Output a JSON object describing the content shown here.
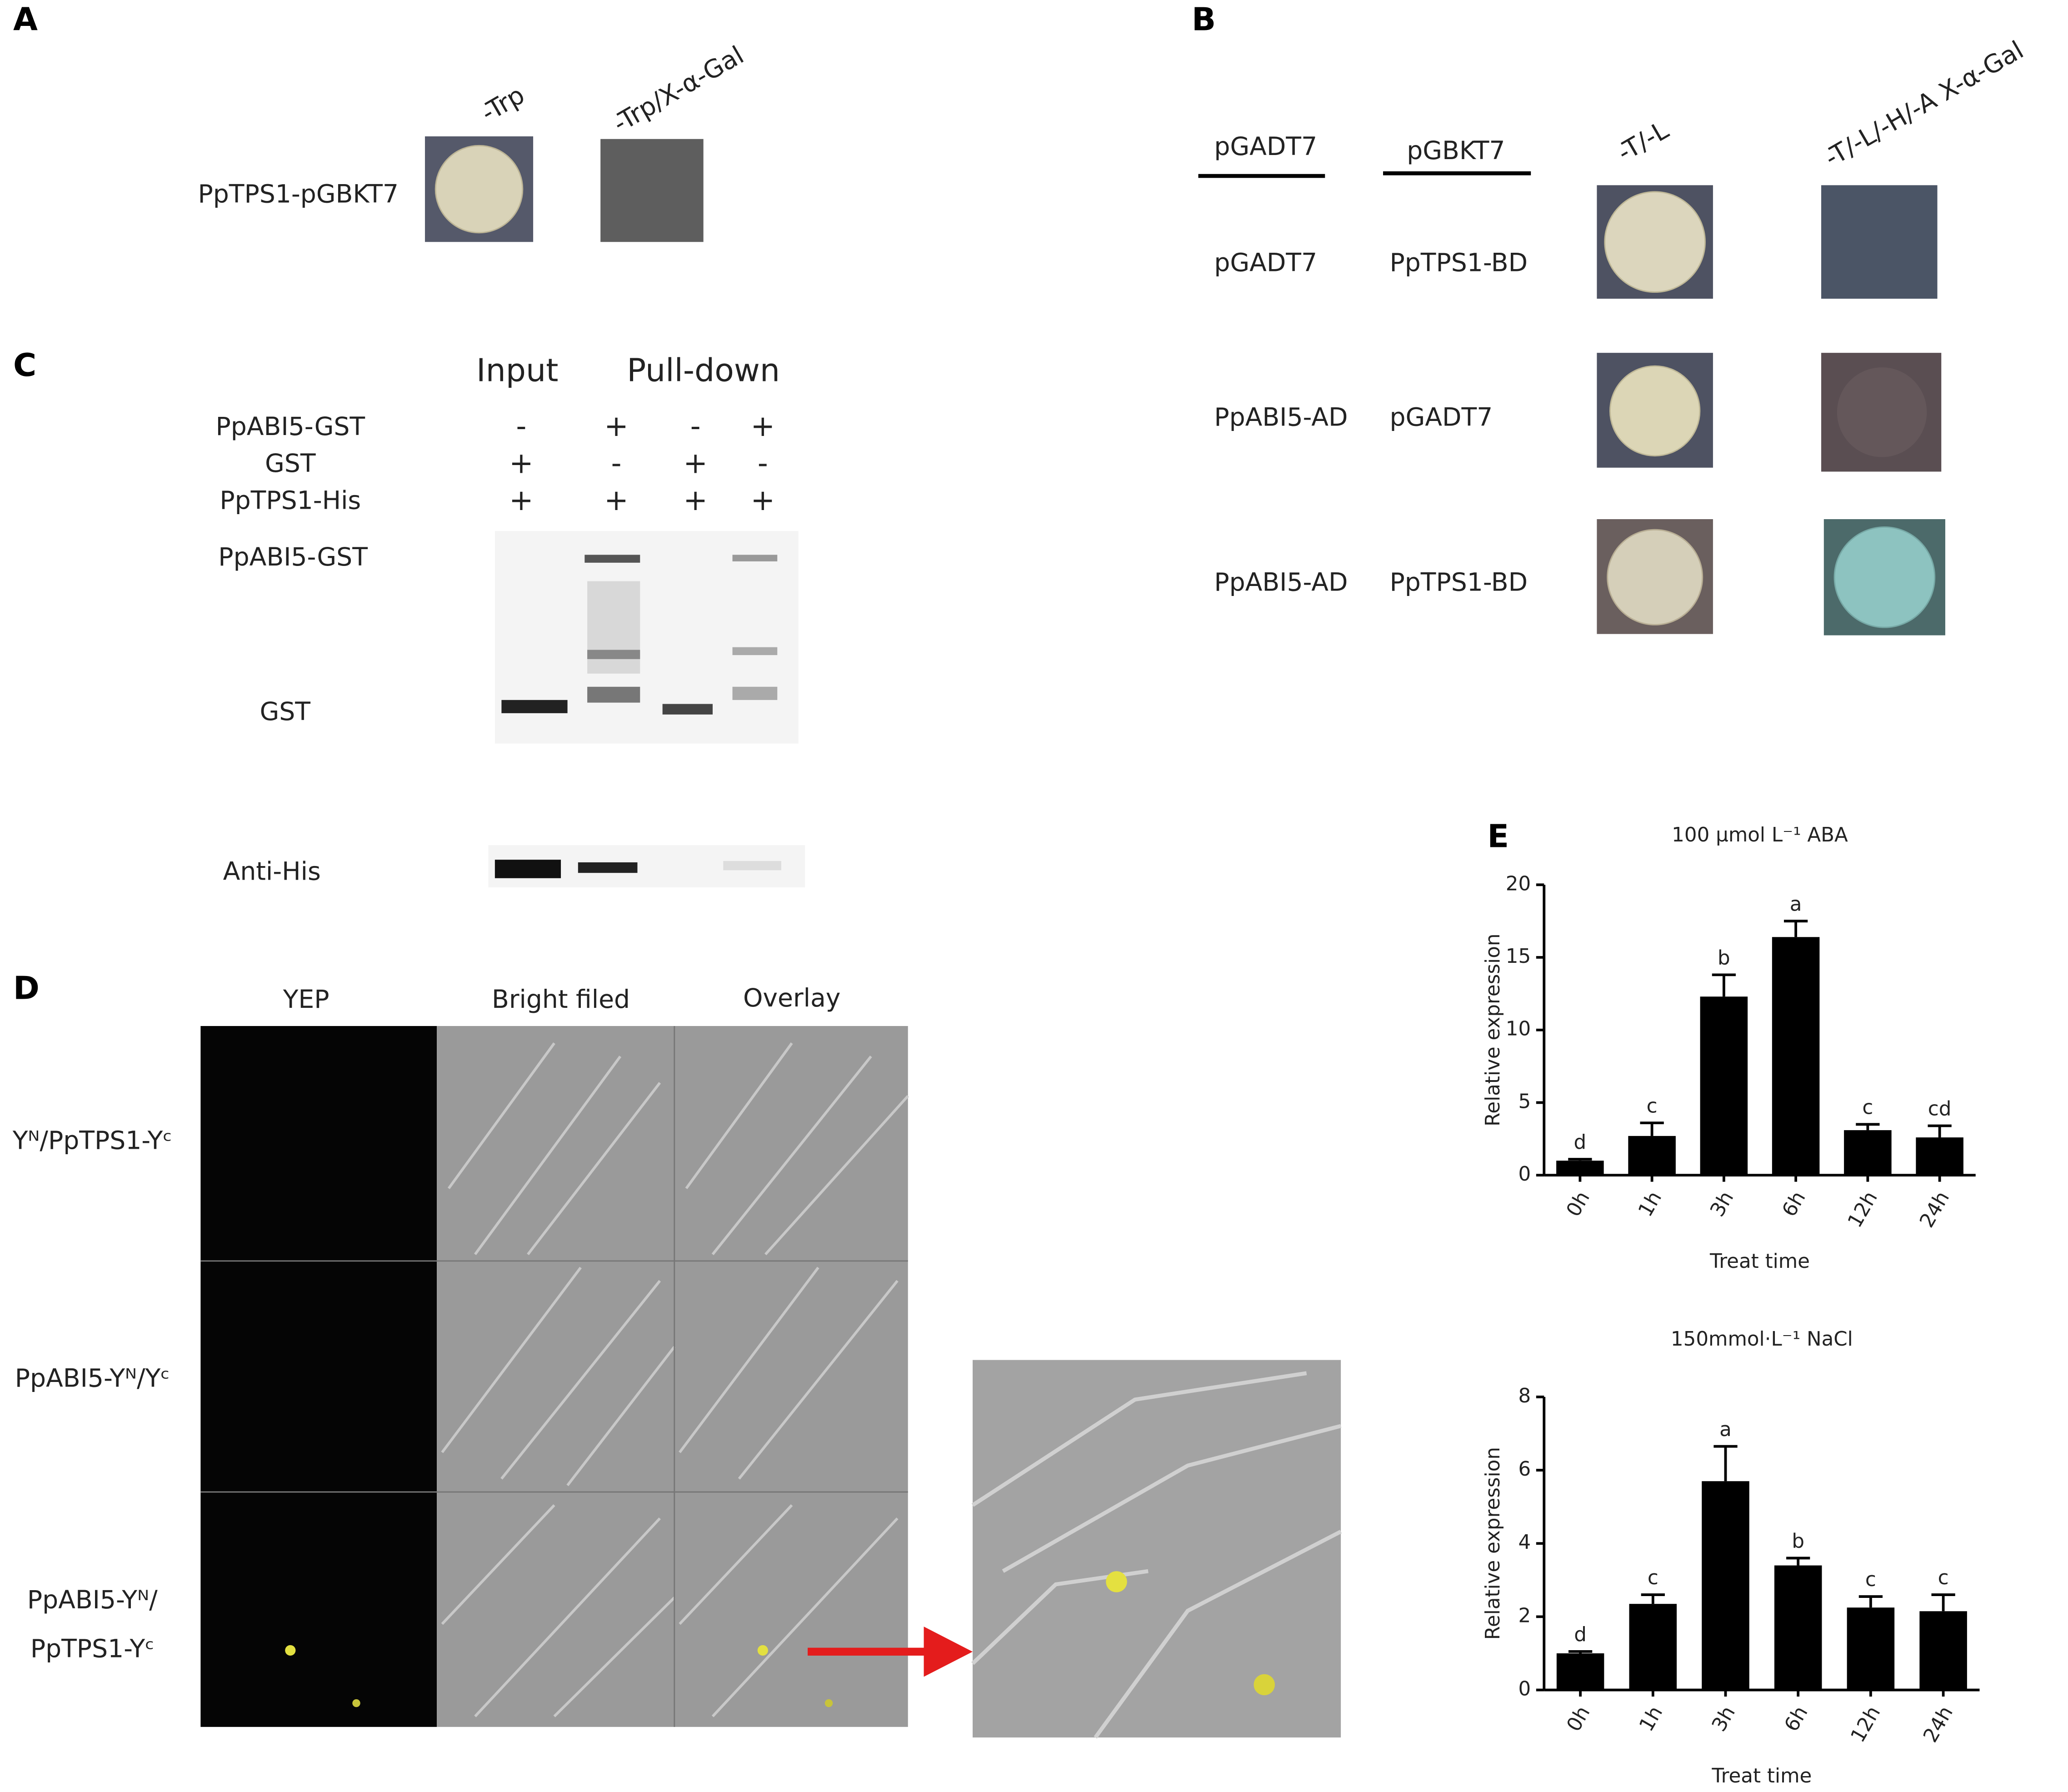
{
  "panel_a": {
    "label": "A",
    "columns": [
      "-Trp",
      "-Trp/X-α-Gal"
    ],
    "row": "PpTPS1-pGBKT7"
  },
  "panel_b": {
    "label": "B",
    "headers": [
      "pGADT7",
      "pGBKT7",
      "-T/-L",
      "-T/-L/-H/-A X-α-Gal"
    ],
    "rows": [
      [
        "pGADT7",
        "PpTPS1-BD"
      ],
      [
        "PpABI5-AD",
        "pGADT7"
      ],
      [
        "PpABI5-AD",
        "PpTPS1-BD"
      ]
    ]
  },
  "panel_c": {
    "label": "C",
    "groups": [
      "Input",
      "Pull-down"
    ],
    "rows": [
      {
        "name": "PpABI5-GST",
        "signs": [
          "-",
          "+",
          "-",
          "+"
        ]
      },
      {
        "name": "GST",
        "signs": [
          "+",
          "-",
          "+",
          "-"
        ]
      },
      {
        "name": "PpTPS1-His",
        "signs": [
          "+",
          "+",
          "+",
          "+"
        ]
      }
    ],
    "bands": [
      "PpABI5-GST",
      "GST",
      "Anti-His"
    ]
  },
  "panel_d": {
    "label": "D",
    "columns": [
      "YEP",
      "Bright filed",
      "Overlay"
    ],
    "rows": [
      [
        "Yᴺ/PpTPS1-Yᶜ"
      ],
      [
        "PpABI5-Yᴺ/Yᶜ"
      ],
      [
        "PpABI5-Yᴺ/",
        "PpTPS1-Yᶜ"
      ]
    ]
  },
  "panel_e": {
    "label": "E"
  },
  "chart_data": [
    {
      "type": "bar",
      "title": "100 μmol L⁻¹ ABA",
      "categories": [
        "0h",
        "1h",
        "3h",
        "6h",
        "12h",
        "24h"
      ],
      "values": [
        1,
        2.7,
        12.3,
        16.4,
        3.1,
        2.6
      ],
      "errors": [
        0.1,
        0.9,
        1.5,
        1.1,
        0.4,
        0.8
      ],
      "annotations": [
        "d",
        "c",
        "b",
        "a",
        "c",
        "cd"
      ],
      "color": "#000000",
      "ylim": [
        0,
        20
      ],
      "yticks": [
        0,
        5,
        10,
        15,
        20
      ],
      "ylabel": "Relative expression",
      "xlabel": "Treat time"
    },
    {
      "type": "bar",
      "title": "150mmol·L⁻¹ NaCl",
      "categories": [
        "0h",
        "1h",
        "3h",
        "6h",
        "12h",
        "24h"
      ],
      "values": [
        1,
        2.35,
        5.7,
        3.4,
        2.25,
        2.15
      ],
      "errors": [
        0.05,
        0.25,
        0.95,
        0.2,
        0.3,
        0.45
      ],
      "annotations": [
        "d",
        "c",
        "a",
        "b",
        "c",
        "c"
      ],
      "color": "#000000",
      "ylim": [
        0,
        8
      ],
      "yticks": [
        0,
        2,
        4,
        6,
        8
      ],
      "ylabel": "Relative expression",
      "xlabel": "Treat time"
    }
  ]
}
